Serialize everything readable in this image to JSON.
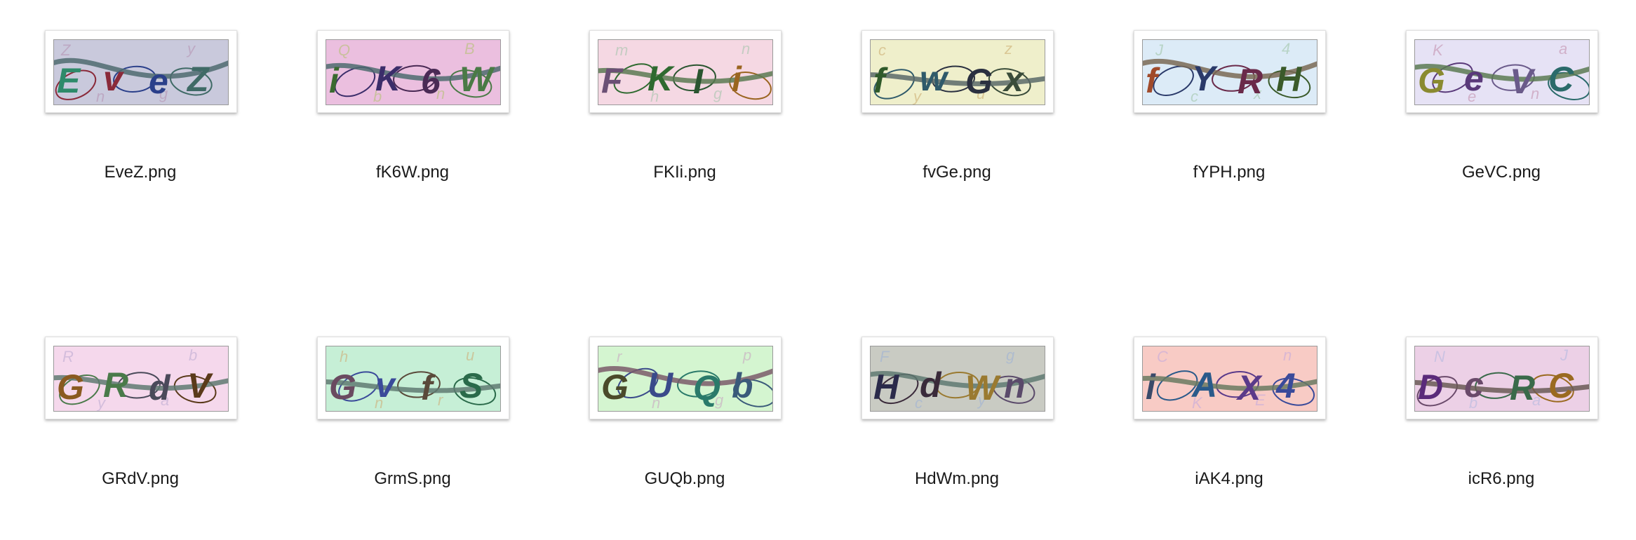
{
  "files": [
    {
      "name": "EveZ.png",
      "captcha": {
        "chars": [
          "E",
          "v",
          "e",
          "Z"
        ],
        "colors": [
          "#2e8a6a",
          "#8a2a3a",
          "#2a3f8a",
          "#3f6a66"
        ],
        "bg": "#c9c9dc",
        "arc": "#4f6b70",
        "noise": [
          "Z",
          "y",
          "g",
          "n"
        ],
        "noise_color": "#b48fb0"
      }
    },
    {
      "name": "fK6W.png",
      "captcha": {
        "chars": [
          "i",
          "K",
          "6",
          "W"
        ],
        "colors": [
          "#3a6a30",
          "#3b2d6a",
          "#4a2a55",
          "#4a7a46"
        ],
        "bg": "#ebbfdf",
        "arc": "#4f6b70",
        "noise": [
          "Q",
          "B",
          "n",
          "b"
        ],
        "noise_color": "#b0c26a"
      }
    },
    {
      "name": "FKIi.png",
      "captcha": {
        "chars": [
          "F",
          "K",
          "I",
          "i"
        ],
        "colors": [
          "#6b5075",
          "#2f6a30",
          "#2a5530",
          "#9a6520"
        ],
        "bg": "#f5d8e3",
        "arc": "#5b7a52",
        "noise": [
          "m",
          "n",
          "g",
          "h"
        ],
        "noise_color": "#9fc3a8"
      }
    },
    {
      "name": "fvGe.png",
      "captcha": {
        "chars": [
          "f",
          "w",
          "G",
          "x"
        ],
        "colors": [
          "#2f5a2a",
          "#2f5a6a",
          "#2a3040",
          "#3a4c3a"
        ],
        "bg": "#efefcb",
        "arc": "#5b6a6a",
        "noise": [
          "c",
          "z",
          "u",
          "y"
        ],
        "noise_color": "#c9a86a"
      }
    },
    {
      "name": "fYPH.png",
      "captcha": {
        "chars": [
          "f",
          "Y",
          "R",
          "H"
        ],
        "colors": [
          "#a04a2a",
          "#2a3a6a",
          "#6a2a4a",
          "#3a5a2a"
        ],
        "bg": "#dcebf7",
        "arc": "#7a6a55",
        "noise": [
          "J",
          "4",
          "x",
          "c"
        ],
        "noise_color": "#9bc3a0"
      }
    },
    {
      "name": "GeVC.png",
      "captcha": {
        "chars": [
          "G",
          "e",
          "V",
          "C"
        ],
        "colors": [
          "#8a8a30",
          "#5a3a7a",
          "#6a5a8a",
          "#2a6a6a"
        ],
        "bg": "#e6e2f5",
        "arc": "#5b7a52",
        "noise": [
          "K",
          "a",
          "n",
          "e"
        ],
        "noise_color": "#c08aa8"
      }
    },
    {
      "name": "GRdV.png",
      "captcha": {
        "chars": [
          "G",
          "R",
          "d",
          "V"
        ],
        "colors": [
          "#8a5a20",
          "#4a7a4a",
          "#4a4a5a",
          "#5a3a1a"
        ],
        "bg": "#f5d8ec",
        "arc": "#5f7a72",
        "noise": [
          "R",
          "b",
          "a",
          "y"
        ],
        "noise_color": "#b8a8d0"
      }
    },
    {
      "name": "GrmS.png",
      "captcha": {
        "chars": [
          "G",
          "v",
          "f",
          "S"
        ],
        "colors": [
          "#6a4a60",
          "#3a4a9a",
          "#5a4a3a",
          "#2a6a4a"
        ],
        "bg": "#c6efd6",
        "arc": "#5f7a72",
        "noise": [
          "h",
          "u",
          "r",
          "n"
        ],
        "noise_color": "#d0a870"
      }
    },
    {
      "name": "GUQb.png",
      "captcha": {
        "chars": [
          "G",
          "U",
          "Q",
          "b"
        ],
        "colors": [
          "#4a4a2a",
          "#3a4a8a",
          "#2a7a6a",
          "#3a5a7a"
        ],
        "bg": "#d4f5d0",
        "arc": "#7a5a6a",
        "noise": [
          "r",
          "p",
          "g",
          "n"
        ],
        "noise_color": "#c8a0c0"
      }
    },
    {
      "name": "HdWm.png",
      "captcha": {
        "chars": [
          "H",
          "d",
          "W",
          "n"
        ],
        "colors": [
          "#2a2a4a",
          "#3a2a3a",
          "#9a7a30",
          "#5a4a6a"
        ],
        "bg": "#c9cbc3",
        "arc": "#5f7a72",
        "noise": [
          "F",
          "g",
          "y",
          "c"
        ],
        "noise_color": "#9ab0d8"
      }
    },
    {
      "name": "iAK4.png",
      "captcha": {
        "chars": [
          "i",
          "A",
          "X",
          "4"
        ],
        "colors": [
          "#3a4a6a",
          "#2a5a8a",
          "#5a3a8a",
          "#3a4a9a"
        ],
        "bg": "#f8cbc5",
        "arc": "#6a7a60",
        "noise": [
          "C",
          "n",
          "E",
          "K"
        ],
        "noise_color": "#c0a8e0"
      }
    },
    {
      "name": "icR6.png",
      "captcha": {
        "chars": [
          "D",
          "c",
          "R",
          "C"
        ],
        "colors": [
          "#5a2a7a",
          "#6a4a6a",
          "#3a6a4a",
          "#9a6a20"
        ],
        "bg": "#ecd0e6",
        "arc": "#6a5a55",
        "noise": [
          "N",
          "J",
          "a",
          "b"
        ],
        "noise_color": "#b0b8e0"
      }
    }
  ]
}
